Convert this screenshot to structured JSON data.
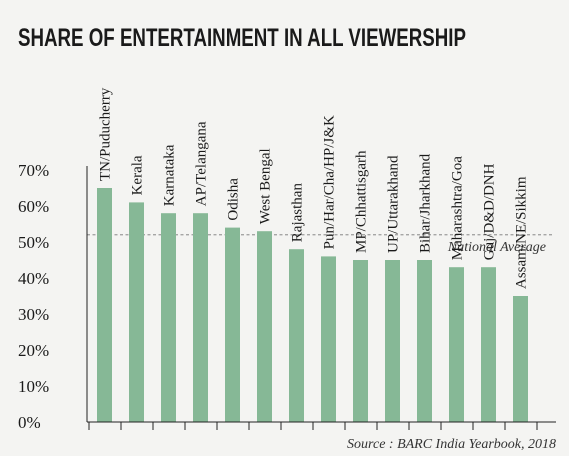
{
  "chart_data": {
    "type": "bar",
    "title": "SHARE OF ENTERTAINMENT IN ALL VIEWERSHIP",
    "categories": [
      "TN/Puducherry",
      "Kerala",
      "Karnataka",
      "AP/Telangana",
      "Odisha",
      "West Bengal",
      "Rajasthan",
      "Pun/Har/Cha/HP/J&K",
      "MP/Chhattisgarh",
      "UP/Uttarakhand",
      "Bihar/Jharkhand",
      "Maharashtra/Goa",
      "Guj/D&D/DNH",
      "Assam/NE/Sikkim"
    ],
    "values": [
      65,
      61,
      58,
      58,
      54,
      53,
      48,
      46,
      45,
      45,
      45,
      43,
      43,
      35
    ],
    "ylim": [
      0,
      70
    ],
    "yticks": [
      "0%",
      "10%",
      "20%",
      "30%",
      "40%",
      "50%",
      "60%",
      "70%"
    ],
    "reference_line": {
      "label": "National Average",
      "value": 52
    },
    "source": "Source : BARC India Yearbook, 2018",
    "colors": {
      "bar": "#86b896",
      "background": "#f4f4f2",
      "text": "#1a1a1a"
    }
  }
}
